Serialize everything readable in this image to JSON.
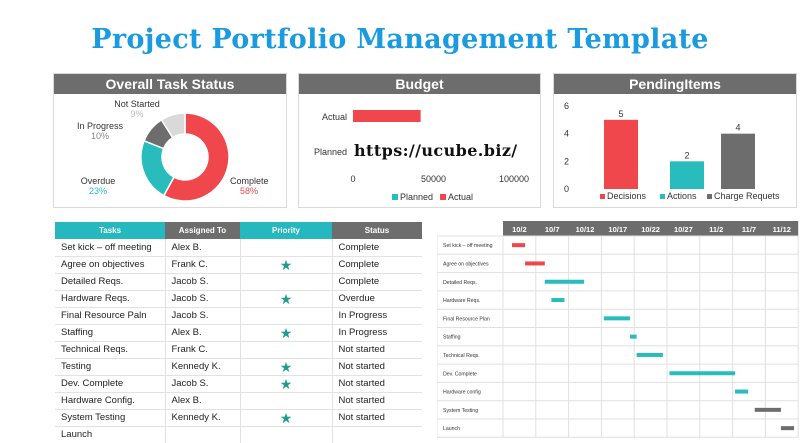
{
  "title": "Project Portfolio Management Template",
  "watermark": "https://ucube.biz/",
  "colors": {
    "red": "#f0474c",
    "teal": "#28bcbc",
    "gray": "#6d6d6d",
    "blue_title": "#1a9be0"
  },
  "chart_data": [
    {
      "type": "pie",
      "title": "Overall Task Status",
      "slices": [
        {
          "label": "Complete",
          "value": 58,
          "pct_label": "58%",
          "color": "#f0474c"
        },
        {
          "label": "Overdue",
          "value": 23,
          "pct_label": "23%",
          "color": "#28bcbc"
        },
        {
          "label": "In Progress",
          "value": 10,
          "pct_label": "10%",
          "color": "#6d6d6d"
        },
        {
          "label": "Not Started",
          "value": 9,
          "pct_label": "9%",
          "color": "#d9d9d9"
        }
      ]
    },
    {
      "type": "bar",
      "orientation": "horizontal",
      "title": "Budget",
      "categories": [
        "Actual",
        "Planned"
      ],
      "series": [
        {
          "name": "Planned",
          "color": "#28bcbc",
          "values": [
            0,
            0
          ]
        },
        {
          "name": "Actual",
          "color": "#f0474c",
          "values": [
            42000,
            0
          ]
        }
      ],
      "xlim": [
        0,
        100000
      ],
      "xticks": [
        "0",
        "50000",
        "100000"
      ],
      "legend": "bottom"
    },
    {
      "type": "bar",
      "title": "PendingItems",
      "categories": [
        "Decisions",
        "Actions",
        "Charge Requets"
      ],
      "values": [
        5,
        2,
        4
      ],
      "colors": [
        "#f0474c",
        "#28bcbc",
        "#6d6d6d"
      ],
      "ylim": [
        0,
        6
      ],
      "yticks": [
        "0",
        "2",
        "4",
        "6"
      ],
      "legend": "bottom"
    },
    {
      "type": "bar",
      "subtype": "gantt",
      "date_labels": [
        "10/2",
        "10/7",
        "10/12",
        "10/17",
        "10/22",
        "10/27",
        "11/2",
        "11/7",
        "11/12"
      ],
      "tasks": [
        {
          "label": "Set kick – off meeting",
          "start": "10/2",
          "end": "10/4",
          "color": "#f0474c"
        },
        {
          "label": "Agree on objectives",
          "start": "10/4",
          "end": "10/7",
          "color": "#f0474c"
        },
        {
          "label": "Detailed Reqs.",
          "start": "10/7",
          "end": "10/13",
          "color": "#28bcbc"
        },
        {
          "label": "Hardware Reqs.",
          "start": "10/8",
          "end": "10/10",
          "color": "#28bcbc"
        },
        {
          "label": "Final Resource Plan",
          "start": "10/16",
          "end": "10/20",
          "color": "#28bcbc"
        },
        {
          "label": "Staffing",
          "start": "10/20",
          "end": "10/21",
          "color": "#28bcbc"
        },
        {
          "label": "Technical Reqs.",
          "start": "10/21",
          "end": "10/25",
          "color": "#28bcbc"
        },
        {
          "label": "Dev. Complete",
          "start": "10/26",
          "end": "11/5",
          "color": "#28bcbc"
        },
        {
          "label": "Hardware config",
          "start": "11/5",
          "end": "11/7",
          "color": "#28bcbc"
        },
        {
          "label": "System Testing",
          "start": "11/8",
          "end": "11/12",
          "color": "#6d6d6d"
        },
        {
          "label": "Launch",
          "start": "11/12",
          "end": "11/14",
          "color": "#6d6d6d"
        }
      ]
    }
  ],
  "tasks_table": {
    "headers": {
      "task": "Tasks",
      "assigned": "Assigned To",
      "priority": "Priority",
      "status": "Status"
    },
    "star_glyph": "★",
    "rows": [
      {
        "task": "Set kick – off meeting",
        "assigned": "Alex B.",
        "priority": false,
        "status": "Complete"
      },
      {
        "task": "Agree on objectives",
        "assigned": "Frank C.",
        "priority": true,
        "status": "Complete"
      },
      {
        "task": "Detailed Reqs.",
        "assigned": "Jacob S.",
        "priority": false,
        "status": "Complete"
      },
      {
        "task": "Hardware Reqs.",
        "assigned": "Jacob S.",
        "priority": true,
        "status": "Overdue"
      },
      {
        "task": "Final Resource Paln",
        "assigned": "Jacob S.",
        "priority": false,
        "status": "In Progress"
      },
      {
        "task": "Staffing",
        "assigned": "Alex B.",
        "priority": true,
        "status": "In Progress"
      },
      {
        "task": "Technical Reqs.",
        "assigned": "Frank C.",
        "priority": false,
        "status": "Not started"
      },
      {
        "task": "Testing",
        "assigned": "Kennedy K.",
        "priority": true,
        "status": "Not started"
      },
      {
        "task": "Dev. Complete",
        "assigned": "Jacob S.",
        "priority": true,
        "status": "Not started"
      },
      {
        "task": "Hardware  Config.",
        "assigned": "Alex B.",
        "priority": false,
        "status": "Not started"
      },
      {
        "task": "System Testing",
        "assigned": "Kennedy K.",
        "priority": true,
        "status": "Not started"
      },
      {
        "task": "Launch",
        "assigned": "",
        "priority": false,
        "status": ""
      }
    ]
  }
}
